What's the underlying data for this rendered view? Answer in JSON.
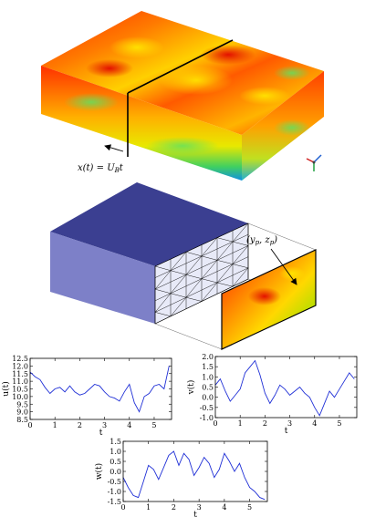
{
  "annotations": {
    "traverse_x": "x(t) = ",
    "traverse_u": "U",
    "traverse_sub": "B",
    "traverse_t": "t",
    "probe_open": "(",
    "probe_y": "y",
    "probe_ysub": "p",
    "probe_comma": ", ",
    "probe_z": "z",
    "probe_zsub": "p",
    "probe_close": ")"
  },
  "colors": {
    "box_top": "#3b3f91",
    "box_front": "#7d80c8",
    "box_side": "#3f43a0",
    "mesh_face": "#e8eaf8",
    "series_line": "#1f2fd6",
    "field_hot": "#ff0000",
    "field_mid": "#ffd000",
    "field_cool": "#30d060"
  },
  "chart_data": [
    {
      "type": "line",
      "ylabel": "u(t)",
      "xlabel": "t",
      "xlim": [
        0,
        5.7
      ],
      "ylim": [
        8.5,
        12.5
      ],
      "xticks": [
        "0",
        "1",
        "2",
        "3",
        "4",
        "5"
      ],
      "yticks": [
        "8.5",
        "9.0",
        "9.5",
        "10.0",
        "10.5",
        "11.0",
        "11.5",
        "12.0",
        "12.5"
      ],
      "series": [
        {
          "x": [
            0,
            0.2,
            0.4,
            0.6,
            0.8,
            1.0,
            1.2,
            1.4,
            1.6,
            1.8,
            2.0,
            2.2,
            2.4,
            2.6,
            2.8,
            3.0,
            3.2,
            3.4,
            3.6,
            3.8,
            4.0,
            4.2,
            4.4,
            4.6,
            4.8,
            5.0,
            5.2,
            5.4,
            5.6
          ],
          "y": [
            11.6,
            11.3,
            11.1,
            10.6,
            10.2,
            10.5,
            10.6,
            10.3,
            10.7,
            10.3,
            10.1,
            10.2,
            10.5,
            10.8,
            10.7,
            10.3,
            10.0,
            9.9,
            9.7,
            10.3,
            10.8,
            9.6,
            9.0,
            10.0,
            10.2,
            10.7,
            10.8,
            10.5,
            12.0
          ]
        }
      ]
    },
    {
      "type": "line",
      "ylabel": "v(t)",
      "xlabel": "t",
      "xlim": [
        0,
        5.7
      ],
      "ylim": [
        -1.0,
        2.0
      ],
      "xticks": [
        "0",
        "1",
        "2",
        "3",
        "4",
        "5"
      ],
      "yticks": [
        "-1.0",
        "-0.5",
        "0.0",
        "0.5",
        "1.0",
        "1.5",
        "2.0"
      ],
      "series": [
        {
          "x": [
            0,
            0.2,
            0.4,
            0.6,
            0.8,
            1.0,
            1.2,
            1.4,
            1.6,
            1.8,
            2.0,
            2.2,
            2.4,
            2.6,
            2.8,
            3.0,
            3.2,
            3.4,
            3.6,
            3.8,
            4.0,
            4.2,
            4.4,
            4.6,
            4.8,
            5.0,
            5.2,
            5.4,
            5.6
          ],
          "y": [
            0.6,
            0.9,
            0.3,
            -0.2,
            0.1,
            0.4,
            1.2,
            1.5,
            1.8,
            1.1,
            0.2,
            -0.3,
            0.1,
            0.6,
            0.4,
            0.1,
            0.3,
            0.5,
            0.2,
            0.0,
            -0.5,
            -0.9,
            -0.3,
            0.3,
            0.0,
            0.4,
            0.8,
            1.2,
            0.9
          ]
        }
      ]
    },
    {
      "type": "line",
      "ylabel": "w(t)",
      "xlabel": "t",
      "xlim": [
        0,
        5.7
      ],
      "ylim": [
        -1.5,
        1.5
      ],
      "xticks": [
        "0",
        "1",
        "2",
        "3",
        "4",
        "5"
      ],
      "yticks": [
        "-1.5",
        "-1.0",
        "-0.5",
        "0.0",
        "0.5",
        "1.0",
        "1.5"
      ],
      "series": [
        {
          "x": [
            0,
            0.2,
            0.4,
            0.6,
            0.8,
            1.0,
            1.2,
            1.4,
            1.6,
            1.8,
            2.0,
            2.2,
            2.4,
            2.6,
            2.8,
            3.0,
            3.2,
            3.4,
            3.6,
            3.8,
            4.0,
            4.2,
            4.4,
            4.6,
            4.8,
            5.0,
            5.2,
            5.4,
            5.6
          ],
          "y": [
            -0.3,
            -0.8,
            -1.2,
            -1.3,
            -0.5,
            0.3,
            0.1,
            -0.4,
            0.2,
            0.8,
            1.0,
            0.3,
            0.9,
            0.6,
            -0.2,
            0.2,
            0.7,
            0.4,
            -0.3,
            0.1,
            0.9,
            0.5,
            0.0,
            0.4,
            -0.3,
            -0.8,
            -1.0,
            -1.3,
            -1.4
          ]
        }
      ]
    }
  ]
}
